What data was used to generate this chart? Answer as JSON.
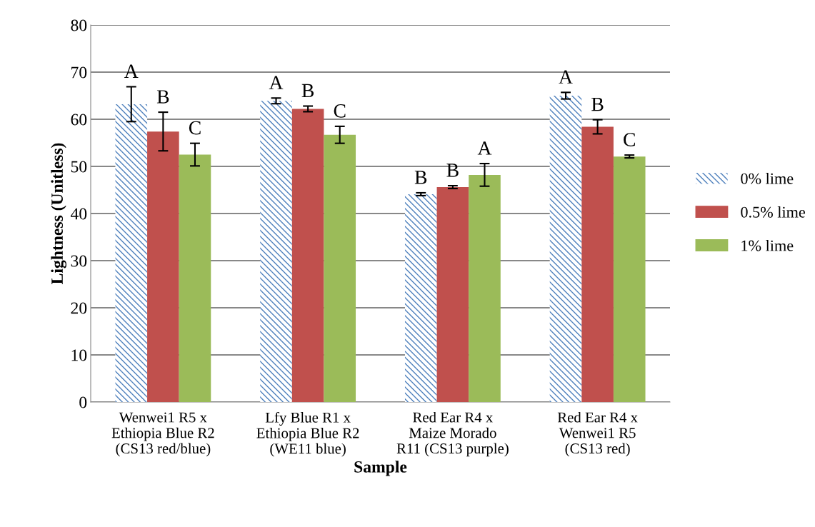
{
  "chart_data": {
    "type": "bar",
    "xlabel": "Sample",
    "ylabel": "Lightness (Unitless)",
    "categories": [
      "Wenwei1 R5 x\nEthiopia Blue R2\n(CS13 red/blue)",
      "Lfy Blue R1 x\nEthiopia Blue R2\n(WE11 blue)",
      "Red Ear R4 x\nMaize Morado\nR11 (CS13 purple)",
      "Red Ear R4 x\nWenwei1 R5\n(CS13 red)"
    ],
    "series": [
      {
        "name": "0% lime",
        "color": "#4f81bd",
        "values": [
          63.2,
          63.9,
          44.1,
          65.0
        ],
        "errors": [
          3.7,
          0.6,
          0.3,
          0.7
        ],
        "value_labels": [
          "A",
          "A",
          "B",
          "A"
        ]
      },
      {
        "name": "0.5% lime",
        "color": "#c0504d",
        "values": [
          57.4,
          62.2,
          45.6,
          58.4
        ],
        "errors": [
          4.1,
          0.6,
          0.3,
          1.5
        ],
        "value_labels": [
          "B",
          "B",
          "B",
          "B"
        ]
      },
      {
        "name": "1% lime",
        "color": "#9bbb59",
        "values": [
          52.5,
          56.7,
          48.2,
          52.1
        ],
        "errors": [
          2.4,
          1.8,
          2.4,
          0.3
        ],
        "value_labels": [
          "C",
          "C",
          "A",
          "C"
        ]
      }
    ],
    "ylim": [
      0,
      80
    ],
    "yticks": [
      0,
      10,
      20,
      30,
      40,
      50,
      60,
      70,
      80
    ],
    "grid": "y",
    "legend": "right"
  }
}
